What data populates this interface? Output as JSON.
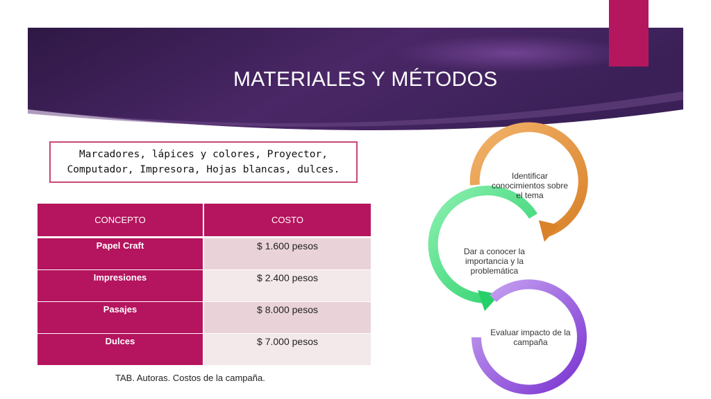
{
  "slide": {
    "title": "MATERIALES Y MÉTODOS",
    "materials_text": "Marcadores, lápices y colores, Proyector, Computador, Impresora, Hojas blancas, dulces."
  },
  "table": {
    "headers": [
      "CONCEPTO",
      "COSTO"
    ],
    "rows": [
      {
        "concept": "Papel Craft",
        "cost": "$ 1.600 pesos"
      },
      {
        "concept": "Impresiones",
        "cost": "$ 2.400 pesos"
      },
      {
        "concept": "Pasajes",
        "cost": "$ 8.000 pesos"
      },
      {
        "concept": "Dulces",
        "cost": "$ 7.000 pesos"
      }
    ],
    "caption": "TAB. Autoras. Costos de la campaña."
  },
  "cycle": {
    "steps": [
      {
        "label": "Identificar conocimientos sobre el tema",
        "color": "#e39a48"
      },
      {
        "label": "Dar a conocer la importancia y la problemática",
        "color": "#4fde84"
      },
      {
        "label": "Evaluar impacto de la campaña",
        "color": "#9a5ae0"
      }
    ]
  },
  "colors": {
    "banner": "#3b1f52",
    "accent": "#b5175f",
    "table_header": "#b5145e"
  }
}
